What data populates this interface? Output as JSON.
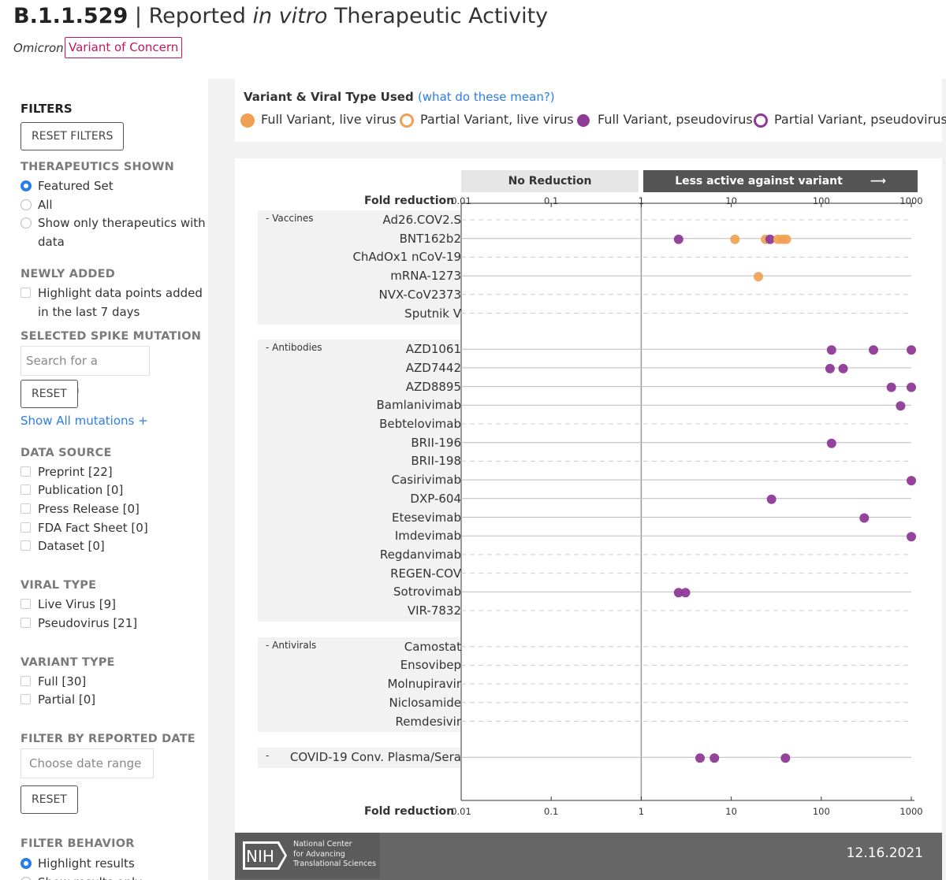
{
  "header": {
    "lineage": "B.1.1.529",
    "separator": "|",
    "title_pre": "Reported",
    "title_em": "in vitro",
    "title_post": "Therapeutic Activity",
    "variant_name": "Omicron",
    "badge": "Variant of Concern"
  },
  "sidebar": {
    "filters_heading": "FILTERS",
    "reset_filters": "RESET FILTERS",
    "therapeutics_shown": {
      "label": "THERAPEUTICS SHOWN",
      "options": [
        "Featured Set",
        "All",
        "Show only therapeutics with",
        "data"
      ],
      "selected": "Featured Set"
    },
    "newly_added": {
      "label": "NEWLY ADDED",
      "option_line1": "Highlight data points added",
      "option_line2": "in the last 7 days"
    },
    "spike_mutation": {
      "label": "SELECTED SPIKE MUTATION",
      "placeholder": "Search for a mutation",
      "reset": "RESET",
      "show_all": "Show All mutations +"
    },
    "data_source": {
      "label": "DATA SOURCE",
      "options": [
        "Preprint  [22]",
        "Publication  [0]",
        "Press Release  [0]",
        "FDA Fact Sheet  [0]",
        "Dataset  [0]"
      ]
    },
    "viral_type": {
      "label": "VIRAL TYPE",
      "options": [
        "Live Virus  [9]",
        "Pseudovirus  [21]"
      ]
    },
    "variant_type": {
      "label": "VARIANT TYPE",
      "options": [
        "Full  [30]",
        "Partial  [0]"
      ]
    },
    "reported_date": {
      "label": "FILTER BY REPORTED DATE",
      "placeholder": "Choose date range",
      "reset": "RESET"
    },
    "filter_behavior": {
      "label": "FILTER BEHAVIOR",
      "options": [
        "Highlight results",
        "Show results only"
      ],
      "selected": "Highlight results"
    }
  },
  "legend": {
    "title": "Variant & Viral Type Used",
    "help_link": "(what do these mean?)",
    "items": [
      {
        "label": "Full Variant, live virus",
        "color": "#f0a050",
        "style": "filled"
      },
      {
        "label": "Partial Variant, live virus",
        "color": "#f0a050",
        "style": "ring"
      },
      {
        "label": "Full Variant, pseudovirus",
        "color": "#8e3a96",
        "style": "filled"
      },
      {
        "label": "Partial Variant, pseudovirus",
        "color": "#8e3a96",
        "style": "ring"
      }
    ]
  },
  "chart_data": {
    "type": "scatter",
    "xscale": "log",
    "xlim": [
      0.01,
      1000
    ],
    "xlabel": "Fold reduction",
    "xticks": [
      "0.01",
      "0.1",
      "1",
      "10",
      "100",
      "1000"
    ],
    "bands": {
      "no_reduction": "No Reduction",
      "less_active": "Less active against variant"
    },
    "groups": [
      {
        "name": "- Vaccines",
        "rows": [
          {
            "label": "Ad26.COV2.S",
            "points": []
          },
          {
            "label": "BNT162b2",
            "points": [
              {
                "x": 2.6,
                "type": "pseudo"
              },
              {
                "x": 11,
                "type": "live"
              },
              {
                "x": 24,
                "type": "live"
              },
              {
                "x": 27,
                "type": "pseudo"
              },
              {
                "x": 33,
                "type": "live"
              },
              {
                "x": 37,
                "type": "live"
              },
              {
                "x": 41,
                "type": "live"
              }
            ]
          },
          {
            "label": "ChAdOx1 nCoV-19",
            "points": []
          },
          {
            "label": "mRNA-1273",
            "points": [
              {
                "x": 20,
                "type": "live"
              }
            ]
          },
          {
            "label": "NVX-CoV2373",
            "points": []
          },
          {
            "label": "Sputnik V",
            "points": []
          }
        ]
      },
      {
        "name": "- Antibodies",
        "rows": [
          {
            "label": "AZD1061",
            "points": [
              {
                "x": 130,
                "type": "pseudo"
              },
              {
                "x": 380,
                "type": "pseudo"
              },
              {
                "x": 1000,
                "type": "pseudo"
              }
            ]
          },
          {
            "label": "AZD7442",
            "points": [
              {
                "x": 125,
                "type": "pseudo"
              },
              {
                "x": 175,
                "type": "pseudo"
              }
            ]
          },
          {
            "label": "AZD8895",
            "points": [
              {
                "x": 600,
                "type": "pseudo"
              },
              {
                "x": 1000,
                "type": "pseudo"
              }
            ]
          },
          {
            "label": "Bamlanivimab",
            "points": [
              {
                "x": 760,
                "type": "pseudo"
              }
            ]
          },
          {
            "label": "Bebtelovimab",
            "points": []
          },
          {
            "label": "BRII-196",
            "points": [
              {
                "x": 130,
                "type": "pseudo"
              }
            ]
          },
          {
            "label": "BRII-198",
            "points": []
          },
          {
            "label": "Casirivimab",
            "points": [
              {
                "x": 1000,
                "type": "pseudo"
              }
            ]
          },
          {
            "label": "DXP-604",
            "points": [
              {
                "x": 28,
                "type": "pseudo"
              }
            ]
          },
          {
            "label": "Etesevimab",
            "points": [
              {
                "x": 300,
                "type": "pseudo"
              }
            ]
          },
          {
            "label": "Imdevimab",
            "points": [
              {
                "x": 1000,
                "type": "pseudo"
              }
            ]
          },
          {
            "label": "Regdanvimab",
            "points": []
          },
          {
            "label": "REGEN-COV",
            "points": []
          },
          {
            "label": "Sotrovimab",
            "points": [
              {
                "x": 2.6,
                "type": "pseudo"
              },
              {
                "x": 3.1,
                "type": "pseudo"
              }
            ]
          },
          {
            "label": "VIR-7832",
            "points": []
          }
        ]
      },
      {
        "name": "- Antivirals",
        "rows": [
          {
            "label": "Camostat",
            "points": []
          },
          {
            "label": "Ensovibep",
            "points": []
          },
          {
            "label": "Molnupiravir",
            "points": []
          },
          {
            "label": "Niclosamide",
            "points": []
          },
          {
            "label": "Remdesivir",
            "points": []
          }
        ]
      },
      {
        "name": "-",
        "rows": [
          {
            "label": "COVID-19 Conv. Plasma/Sera",
            "points": [
              {
                "x": 4.5,
                "type": "pseudo"
              },
              {
                "x": 6.5,
                "type": "pseudo"
              },
              {
                "x": 40,
                "type": "pseudo"
              }
            ]
          }
        ]
      }
    ]
  },
  "footer": {
    "org_line1": "National Center",
    "org_line2": "for Advancing",
    "org_line3": "Translational Sciences",
    "logo_text": "NIH",
    "date": "12.16.2021"
  }
}
